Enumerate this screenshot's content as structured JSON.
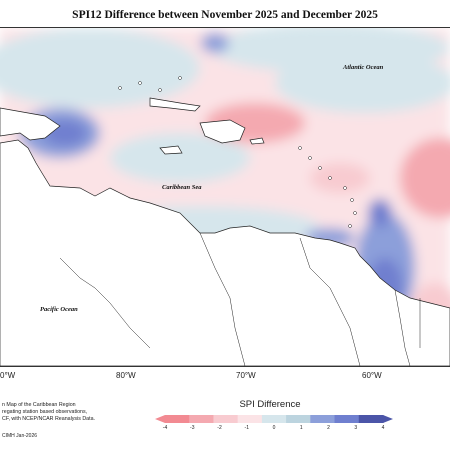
{
  "title": "SPI12 Difference between November 2025 and December 2025",
  "labels": {
    "atlantic": "Atlantic Ocean",
    "caribbean": "Caribbean Sea",
    "pacific": "Pacific Ocean"
  },
  "longitudes": [
    "0°W",
    "80°W",
    "70°W",
    "60°W"
  ],
  "note_lines": [
    "n Map of the Caribbean Region",
    "regating station based observations,",
    "CF, with NCEP/NCAR Reanalysis Data."
  ],
  "credit": "CIMH Jan-2026",
  "legend": {
    "title": "SPI Difference",
    "ticks": [
      "-4",
      "-3",
      "-2",
      "-1",
      "0",
      "1",
      "2",
      "3",
      "4"
    ],
    "colors": [
      "#f28a92",
      "#f4a9b0",
      "#f8cbd0",
      "#fbe3e6",
      "#d6e6ec",
      "#bcd4df",
      "#8c9fda",
      "#6f7fcf",
      "#4b55a8"
    ]
  }
}
